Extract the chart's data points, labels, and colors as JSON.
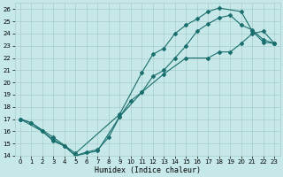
{
  "xlabel": "Humidex (Indice chaleur)",
  "bg_color": "#c6e8e8",
  "grid_color": "#a8cccc",
  "line_color": "#1a6e6e",
  "xlim": [
    -0.5,
    23.5
  ],
  "ylim": [
    14,
    26.5
  ],
  "xticks": [
    0,
    1,
    2,
    3,
    4,
    5,
    6,
    7,
    8,
    9,
    10,
    11,
    12,
    13,
    14,
    15,
    16,
    17,
    18,
    19,
    20,
    21,
    22,
    23
  ],
  "yticks": [
    14,
    15,
    16,
    17,
    18,
    19,
    20,
    21,
    22,
    23,
    24,
    25,
    26
  ],
  "line1_x": [
    0,
    2,
    3,
    4,
    5,
    7,
    9,
    11,
    13,
    15,
    17,
    18,
    19,
    20,
    21,
    22,
    23
  ],
  "line1_y": [
    17,
    16,
    15.3,
    14.8,
    14.0,
    14.4,
    17.2,
    19.2,
    20.7,
    22.0,
    22.0,
    22.5,
    22.5,
    23.2,
    24.0,
    24.2,
    23.2
  ],
  "line2_x": [
    0,
    1,
    2,
    3,
    4,
    5,
    6,
    7,
    8,
    9,
    10,
    11,
    12,
    13,
    14,
    15,
    16,
    17,
    18,
    19,
    20,
    21,
    22,
    23
  ],
  "line2_y": [
    17,
    16.7,
    16.0,
    15.2,
    14.8,
    14.0,
    14.3,
    14.5,
    15.5,
    17.2,
    18.5,
    19.2,
    20.5,
    21.0,
    22.0,
    23.0,
    24.2,
    24.8,
    25.3,
    25.5,
    24.7,
    24.3,
    23.5,
    23.2
  ],
  "line3_x": [
    0,
    1,
    3,
    5,
    9,
    11,
    12,
    13,
    14,
    15,
    16,
    17,
    18,
    20,
    21,
    22,
    23
  ],
  "line3_y": [
    17,
    16.7,
    15.5,
    14.2,
    17.4,
    20.8,
    22.3,
    22.8,
    24.0,
    24.7,
    25.2,
    25.8,
    26.1,
    25.8,
    24.2,
    23.3,
    23.2
  ]
}
